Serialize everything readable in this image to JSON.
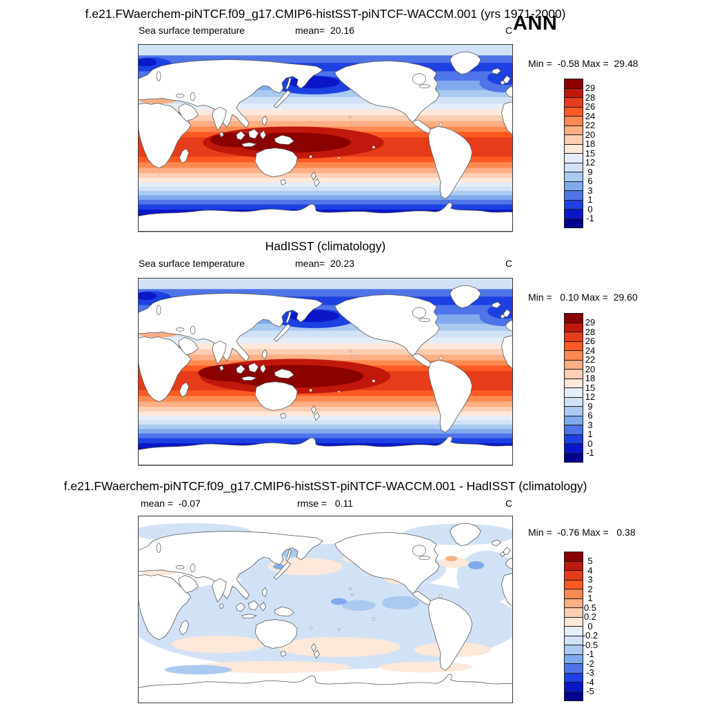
{
  "header": {
    "title": "f.e21.FWaerchem-piNTCF.f09_g17.CMIP6-histSST-piNTCF-WACCM.001 (yrs 1971-2000)",
    "season": "ANN"
  },
  "palette": [
    "#8B0000",
    "#C0180C",
    "#E63C19",
    "#FC5A22",
    "#FC8A50",
    "#FCAE84",
    "#FCCEB3",
    "#FDE8DA",
    "#E4EEF9",
    "#D2E2F6",
    "#AACAF0",
    "#80AAEC",
    "#4E74E8",
    "#1C40E2",
    "#0A16C8",
    "#02028E"
  ],
  "map_outline_color": "#555555",
  "panels": [
    {
      "field_label": "Sea surface temperature",
      "mean_text": "mean=  20.16",
      "units": "C",
      "minmax_text": "Min =  -0.58 Max =  29.48",
      "levels": [
        "29",
        "28",
        "26",
        "24",
        "22",
        "20",
        "18",
        "15",
        "12",
        "9",
        "6",
        "3",
        "1",
        "0",
        "-1"
      ]
    },
    {
      "section_title": "HadISST (climatology)",
      "field_label": "Sea surface temperature",
      "mean_text": "mean=  20.23",
      "units": "C",
      "minmax_text": "Min =   0.10 Max =  29.60",
      "levels": [
        "29",
        "28",
        "26",
        "24",
        "22",
        "20",
        "18",
        "15",
        "12",
        "9",
        "6",
        "3",
        "1",
        "0",
        "-1"
      ]
    },
    {
      "section_title": "f.e21.FWaerchem-piNTCF.f09_g17.CMIP6-histSST-piNTCF-WACCM.001 - HadISST (climatology)",
      "mean_text": "mean =  -0.07",
      "rmse_text": "rmse =   0.11",
      "units": "C",
      "minmax_text": "Min =  -0.76 Max =   0.38",
      "levels": [
        "5",
        "4",
        "3",
        "2",
        "1",
        "0.5",
        "0.2",
        "0",
        "-0.2",
        "-0.5",
        "-1",
        "-2",
        "-3",
        "-4",
        "-5"
      ]
    }
  ],
  "chart_data": [
    {
      "type": "heatmap",
      "map_type": "filled_contour_world_map",
      "projection": "cylindrical_equidistant_pacific_centered",
      "title": "f.e21.FWaerchem-piNTCF.f09_g17.CMIP6-histSST-piNTCF-WACCM.001 (yrs 1971-2000)",
      "season": "ANN",
      "variable": "Sea surface temperature",
      "units": "C",
      "mean": 20.16,
      "min": -0.58,
      "max": 29.48,
      "contour_levels": [
        -1,
        0,
        1,
        3,
        6,
        9,
        12,
        15,
        18,
        20,
        22,
        24,
        26,
        28,
        29
      ],
      "palette_low_to_high": [
        "#02028E",
        "#0A16C8",
        "#1C40E2",
        "#4E74E8",
        "#80AAEC",
        "#AACAF0",
        "#D2E2F6",
        "#E4EEF9",
        "#FDE8DA",
        "#FCCEB3",
        "#FCAE84",
        "#FC8A50",
        "#FC5A22",
        "#E63C19",
        "#C0180C",
        "#8B0000"
      ],
      "legend_position": "right",
      "description": "Dark red (>29C) Indo-Pacific warm pool along the equator, reds through subtropics, blues (<3C) in subpolar oceans, land masked white"
    },
    {
      "type": "heatmap",
      "map_type": "filled_contour_world_map",
      "projection": "cylindrical_equidistant_pacific_centered",
      "title": "HadISST (climatology)",
      "variable": "Sea surface temperature",
      "units": "C",
      "mean": 20.23,
      "min": 0.1,
      "max": 29.6,
      "contour_levels": [
        -1,
        0,
        1,
        3,
        6,
        9,
        12,
        15,
        18,
        20,
        22,
        24,
        26,
        28,
        29
      ],
      "legend_position": "right"
    },
    {
      "type": "heatmap",
      "map_type": "filled_contour_world_map",
      "projection": "cylindrical_equidistant_pacific_centered",
      "title": "f.e21.FWaerchem-piNTCF.f09_g17.CMIP6-histSST-piNTCF-WACCM.001 - HadISST (climatology)",
      "variable": "SST difference (model minus HadISST)",
      "units": "C",
      "mean": -0.07,
      "rmse": 0.11,
      "min": -0.76,
      "max": 0.38,
      "contour_levels": [
        -5,
        -4,
        -3,
        -2,
        -1,
        -0.5,
        -0.2,
        0,
        0.2,
        0.5,
        1,
        2,
        3,
        4,
        5
      ],
      "legend_position": "right",
      "description": "Differences mostly between -0.5 and +0.2 C; pale blue negative anomalies over most oceans with scattered pale orange positive patches"
    }
  ]
}
